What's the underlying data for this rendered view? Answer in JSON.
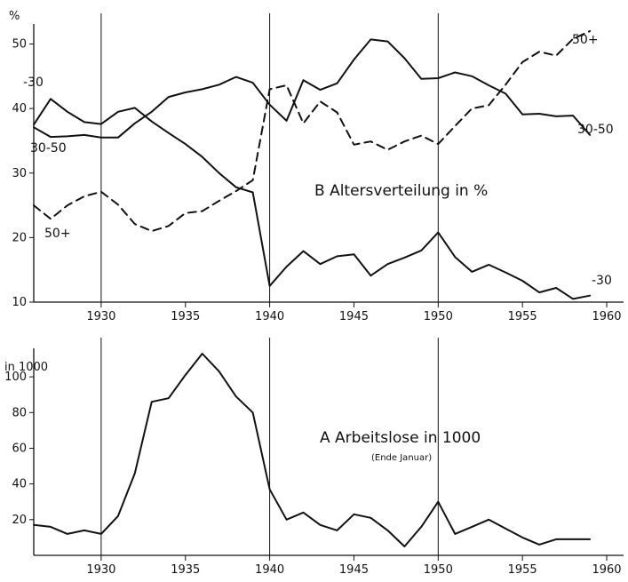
{
  "chart_data": [
    {
      "type": "line",
      "title": "B   Altersverteilung in %",
      "ylabel": "%",
      "xlim": [
        1926,
        1961
      ],
      "ylim": [
        10,
        52
      ],
      "x_ticks": [
        "1930",
        "1935",
        "1940",
        "1945",
        "1950",
        "1955",
        "1960"
      ],
      "y_ticks": [
        "10",
        "20",
        "30",
        "40",
        "50"
      ],
      "x_ticks_values": [
        1930,
        1935,
        1940,
        1945,
        1950,
        1955,
        1960
      ],
      "y_ticks_values": [
        10,
        20,
        30,
        40,
        50
      ],
      "vertical_lines": [
        1930,
        1940,
        1950
      ],
      "series": [
        {
          "name": "-30",
          "style": "solid",
          "points": [
            [
              1926,
              37.5
            ],
            [
              1927,
              41.5
            ],
            [
              1928,
              39.5
            ],
            [
              1929,
              37.9
            ],
            [
              1930,
              37.6
            ],
            [
              1931,
              39.5
            ],
            [
              1932,
              40.1
            ],
            [
              1933,
              38
            ],
            [
              1934,
              36.2
            ],
            [
              1935,
              34.5
            ],
            [
              1936,
              32.5
            ],
            [
              1937,
              30
            ],
            [
              1938,
              27.8
            ],
            [
              1939,
              27
            ],
            [
              1940,
              12.5
            ],
            [
              1941,
              15.5
            ],
            [
              1942,
              17.9
            ],
            [
              1943,
              15.9
            ],
            [
              1944,
              17.1
            ],
            [
              1945,
              17.4
            ],
            [
              1946,
              14.1
            ],
            [
              1947,
              15.9
            ],
            [
              1948,
              16.9
            ],
            [
              1949,
              18
            ],
            [
              1950,
              20.8
            ],
            [
              1951,
              17
            ],
            [
              1952,
              14.7
            ],
            [
              1953,
              15.8
            ],
            [
              1954,
              14.6
            ],
            [
              1955,
              13.3
            ],
            [
              1956,
              11.5
            ],
            [
              1957,
              12.2
            ],
            [
              1958,
              10.5
            ],
            [
              1959,
              11
            ]
          ]
        },
        {
          "name": "30-50",
          "style": "solid",
          "points": [
            [
              1926,
              37.1
            ],
            [
              1927,
              35.6
            ],
            [
              1928,
              35.7
            ],
            [
              1929,
              35.9
            ],
            [
              1930,
              35.5
            ],
            [
              1931,
              35.5
            ],
            [
              1932,
              37.7
            ],
            [
              1933,
              39.5
            ],
            [
              1934,
              41.8
            ],
            [
              1935,
              42.5
            ],
            [
              1936,
              43
            ],
            [
              1937,
              43.7
            ],
            [
              1938,
              44.9
            ],
            [
              1939,
              44
            ],
            [
              1940,
              40.6
            ],
            [
              1941,
              38.1
            ],
            [
              1942,
              44.4
            ],
            [
              1943,
              42.9
            ],
            [
              1944,
              43.9
            ],
            [
              1945,
              47.6
            ],
            [
              1946,
              50.7
            ],
            [
              1947,
              50.4
            ],
            [
              1948,
              47.8
            ],
            [
              1949,
              44.6
            ],
            [
              1950,
              44.7
            ],
            [
              1951,
              45.6
            ],
            [
              1952,
              45
            ],
            [
              1953,
              43.6
            ],
            [
              1954,
              42.3
            ],
            [
              1955,
              39.1
            ],
            [
              1956,
              39.2
            ],
            [
              1957,
              38.8
            ],
            [
              1958,
              38.9
            ],
            [
              1959,
              35.9
            ]
          ]
        },
        {
          "name": "50+",
          "style": "dashed",
          "points": [
            [
              1926,
              25
            ],
            [
              1927,
              22.9
            ],
            [
              1928,
              25
            ],
            [
              1929,
              26.4
            ],
            [
              1930,
              27.1
            ],
            [
              1931,
              25.1
            ],
            [
              1932,
              22.1
            ],
            [
              1933,
              21
            ],
            [
              1934,
              21.8
            ],
            [
              1935,
              23.8
            ],
            [
              1936,
              24.1
            ],
            [
              1937,
              25.7
            ],
            [
              1938,
              27.2
            ],
            [
              1939,
              28.9
            ],
            [
              1940,
              43
            ],
            [
              1941,
              43.6
            ],
            [
              1942,
              37.7
            ],
            [
              1943,
              41.1
            ],
            [
              1944,
              39.4
            ],
            [
              1945,
              34.4
            ],
            [
              1946,
              34.9
            ],
            [
              1947,
              33.6
            ],
            [
              1948,
              34.9
            ],
            [
              1949,
              35.8
            ],
            [
              1950,
              34.5
            ],
            [
              1951,
              37.3
            ],
            [
              1952,
              40
            ],
            [
              1953,
              40.5
            ],
            [
              1954,
              43.7
            ],
            [
              1955,
              47.2
            ],
            [
              1956,
              48.8
            ],
            [
              1957,
              48.2
            ],
            [
              1958,
              50.8
            ],
            [
              1959,
              52
            ]
          ]
        }
      ]
    },
    {
      "type": "line",
      "title": "A   Arbeitslose in 1000",
      "subtitle": "(Ende Januar)",
      "ylabel": "in 1000",
      "xlim": [
        1926,
        1961
      ],
      "ylim": [
        0,
        112
      ],
      "x_ticks": [
        "1930",
        "1935",
        "1940",
        "1945",
        "1950",
        "1955",
        "1960"
      ],
      "y_ticks": [
        "20",
        "40",
        "60",
        "80",
        "100"
      ],
      "x_ticks_values": [
        1930,
        1935,
        1940,
        1945,
        1950,
        1955,
        1960
      ],
      "y_ticks_values": [
        20,
        40,
        60,
        80,
        100
      ],
      "vertical_lines": [
        1930,
        1940,
        1950
      ],
      "series": [
        {
          "name": "",
          "style": "solid",
          "points": [
            [
              1926,
              17
            ],
            [
              1927,
              16
            ],
            [
              1928,
              12
            ],
            [
              1929,
              14
            ],
            [
              1930,
              12
            ],
            [
              1931,
              22
            ],
            [
              1932,
              46
            ],
            [
              1933,
              86
            ],
            [
              1934,
              88
            ],
            [
              1935,
              101
            ],
            [
              1936,
              113
            ],
            [
              1937,
              103
            ],
            [
              1938,
              89
            ],
            [
              1939,
              80
            ],
            [
              1940,
              37
            ],
            [
              1941,
              20
            ],
            [
              1942,
              24
            ],
            [
              1943,
              17
            ],
            [
              1944,
              14
            ],
            [
              1945,
              23
            ],
            [
              1946,
              21
            ],
            [
              1947,
              14
            ],
            [
              1948,
              5
            ],
            [
              1949,
              16
            ],
            [
              1950,
              30
            ],
            [
              1951,
              12
            ],
            [
              1952,
              16
            ],
            [
              1953,
              20
            ],
            [
              1954,
              15
            ],
            [
              1955,
              10
            ],
            [
              1956,
              6
            ],
            [
              1957,
              9
            ],
            [
              1958,
              9
            ],
            [
              1959,
              9
            ]
          ]
        }
      ]
    }
  ],
  "annotations": {
    "top_series_labels": [
      "-30",
      "30-50",
      "50+",
      "50+",
      "30-50",
      "-30"
    ]
  }
}
